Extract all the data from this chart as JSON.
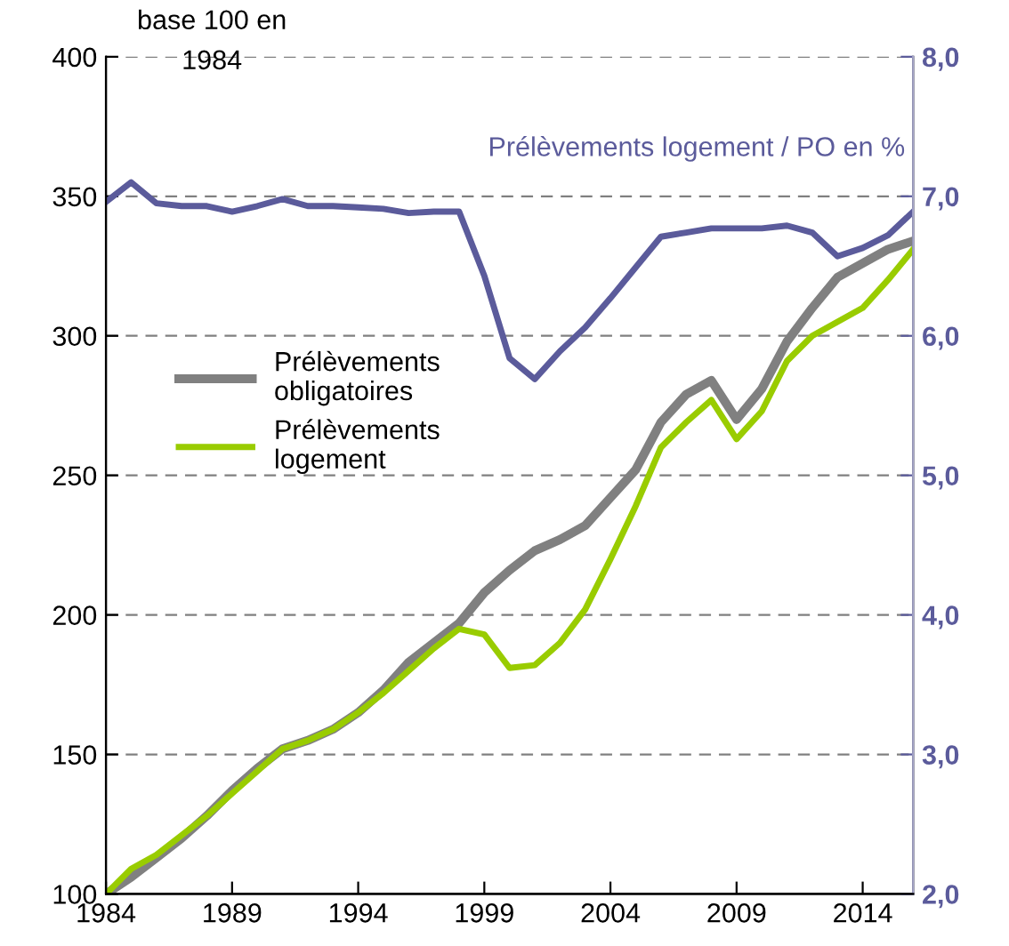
{
  "chart_data": {
    "type": "line",
    "x": [
      1984,
      1985,
      1986,
      1987,
      1988,
      1989,
      1990,
      1991,
      1992,
      1993,
      1994,
      1995,
      1996,
      1997,
      1998,
      1999,
      2000,
      2001,
      2002,
      2003,
      2004,
      2005,
      2006,
      2007,
      2008,
      2009,
      2010,
      2011,
      2012,
      2013,
      2014,
      2015,
      2016
    ],
    "series": [
      {
        "name": "Prélèvements\nobligatoires",
        "color": "#808080",
        "values": [
          100,
          106,
          113,
          120,
          128,
          137,
          145,
          152,
          155,
          159,
          165,
          173,
          183,
          190,
          197,
          208,
          216,
          223,
          227,
          232,
          242,
          252,
          269,
          279,
          284,
          270,
          281,
          298,
          310,
          321,
          326,
          331,
          334
        ]
      },
      {
        "name": "Prélèvements\nlogement",
        "color": "#99cc00",
        "values": [
          100,
          109,
          114,
          121,
          128,
          136,
          144,
          152,
          155,
          159,
          165,
          172,
          180,
          188,
          195,
          193,
          181,
          182,
          190,
          202,
          220,
          239,
          260,
          269,
          277,
          263,
          273,
          291,
          300,
          305,
          310,
          320,
          331
        ]
      },
      {
        "color": "#5b5b9b",
        "axis": "y2",
        "values": [
          6.96,
          7.1,
          6.95,
          6.93,
          6.93,
          6.89,
          6.93,
          6.98,
          6.93,
          6.93,
          6.92,
          6.91,
          6.88,
          6.89,
          6.89,
          6.43,
          5.84,
          5.69,
          5.89,
          6.06,
          6.27,
          6.49,
          6.71,
          6.74,
          6.77,
          6.77,
          6.77,
          6.79,
          6.74,
          6.57,
          6.63,
          6.72,
          6.89
        ]
      }
    ],
    "xlim": [
      1984,
      2016
    ],
    "xticks": [
      1984,
      1989,
      1994,
      1999,
      2004,
      2009,
      2014
    ],
    "ylim": [
      100,
      400
    ],
    "yticks": [
      100,
      150,
      200,
      250,
      300,
      350,
      400
    ],
    "y2lim": [
      2,
      8
    ],
    "y2ticks": [
      {
        "value": 2,
        "label": "2,0"
      },
      {
        "value": 3,
        "label": "3,0"
      },
      {
        "value": 4,
        "label": "4,0"
      },
      {
        "value": 5,
        "label": "5,0"
      },
      {
        "value": 6,
        "label": "6,0"
      },
      {
        "value": 7,
        "label": "7,0"
      },
      {
        "value": 8,
        "label": "8,0"
      }
    ],
    "y2label": "Prélèvements logement / PO en %",
    "annotations": [
      "base 100 en\n1984"
    ],
    "grid": "y",
    "legend": "left",
    "marker": "none",
    "line_style": "solid"
  }
}
